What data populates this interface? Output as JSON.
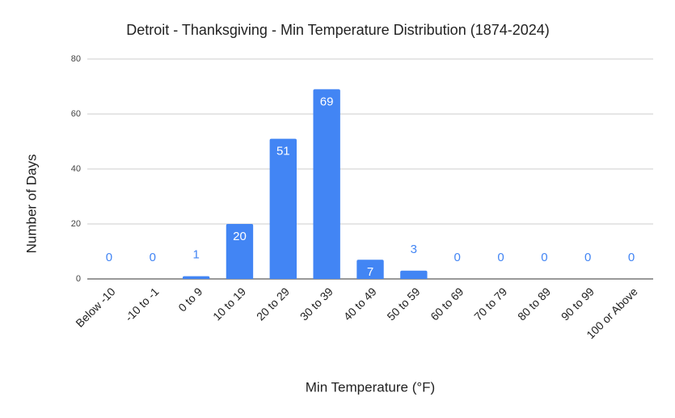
{
  "chart_data": {
    "type": "bar",
    "title": "Detroit - Thanksgiving - Min Temperature Distribution (1874-2024)",
    "x_label": "Min Temperature (°F)",
    "y_label": "Number of Days",
    "categories": [
      "Below -10",
      "-10 to -1",
      "0 to 9",
      "10 to 19",
      "20 to 29",
      "30 to 39",
      "40 to 49",
      "50 to 59",
      "60 to 69",
      "70 to 79",
      "80 to 89",
      "90 to 99",
      "100 or Above"
    ],
    "values": [
      0,
      0,
      1,
      20,
      51,
      69,
      7,
      3,
      0,
      0,
      0,
      0,
      0
    ],
    "color": "#4285f4",
    "ylim": [
      0,
      80
    ],
    "yticks": [
      0,
      20,
      40,
      60,
      80
    ],
    "grid": true
  }
}
